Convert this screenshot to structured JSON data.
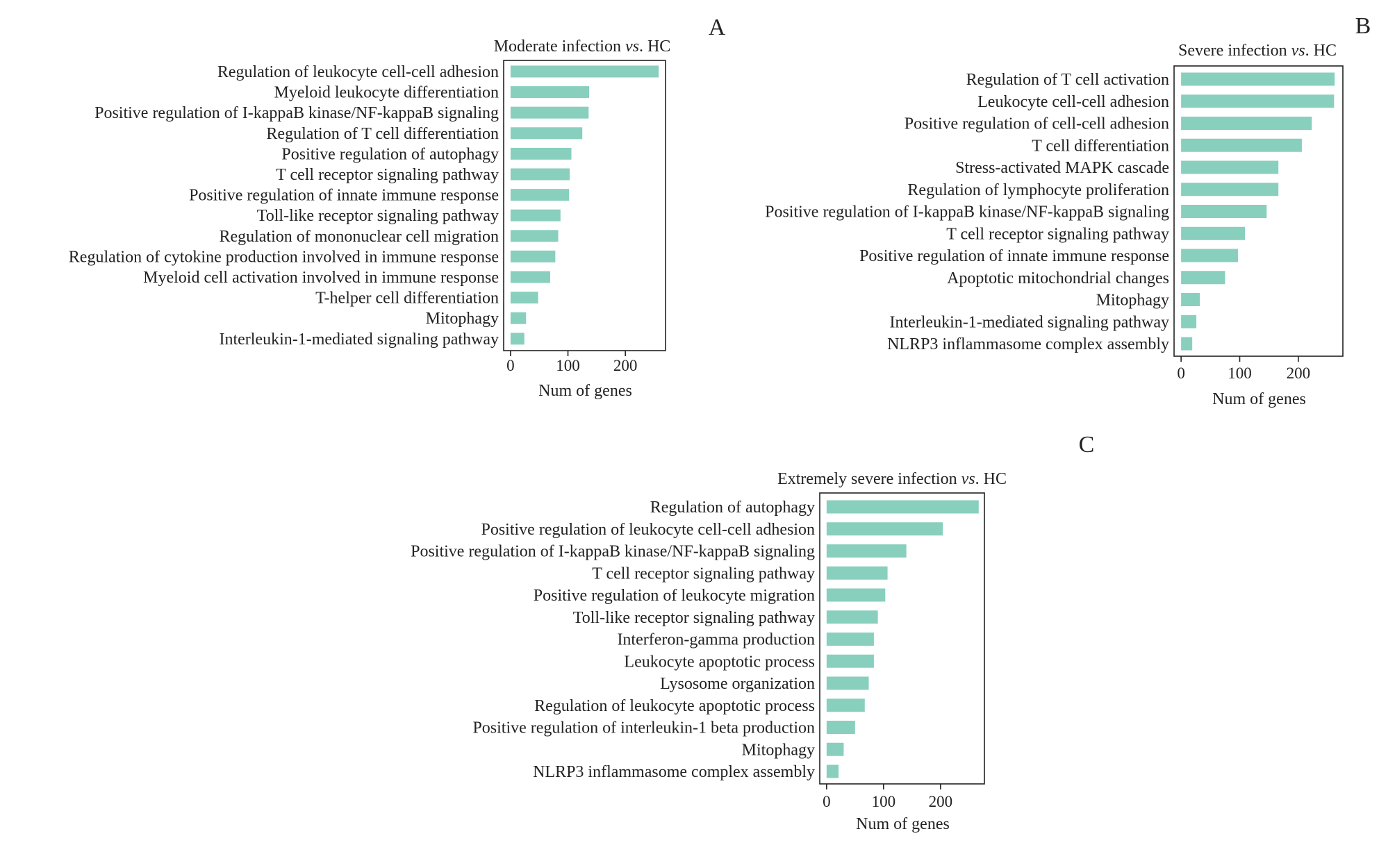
{
  "figure": {
    "xlabel": "Num of genes",
    "bar_color": "#88cfbe",
    "frame_color": "#222222",
    "text_color": "#222222",
    "background": "#ffffff"
  },
  "chart_data": [
    {
      "panel": "A",
      "type": "bar",
      "orientation": "horizontal",
      "title_parts": [
        "Moderate infection ",
        "vs",
        ". HC"
      ],
      "xlabel": "Num of genes",
      "xticks": [
        0,
        100,
        200
      ],
      "xlim": [
        -12,
        270
      ],
      "categories": [
        "Regulation of leukocyte cell-cell adhesion",
        "Myeloid leukocyte differentiation",
        "Positive regulation of I-kappaB kinase/NF-kappaB signaling",
        "Regulation of T cell differentiation",
        "Positive regulation of autophagy",
        "T cell receptor signaling pathway",
        "Positive regulation of innate immune response",
        "Toll-like receptor signaling pathway",
        "Regulation of mononuclear cell migration",
        "Regulation of cytokine production involved in immune response",
        "Myeloid cell activation involved in immune response",
        "T-helper cell differentiation",
        "Mitophagy",
        "Interleukin-1-mediated signaling pathway"
      ],
      "values": [
        258,
        137,
        136,
        125,
        106,
        103,
        102,
        87,
        83,
        78,
        69,
        48,
        27,
        24
      ]
    },
    {
      "panel": "B",
      "type": "bar",
      "orientation": "horizontal",
      "title_parts": [
        "Severe infection ",
        "vs",
        ". HC"
      ],
      "xlabel": "Num of genes",
      "xticks": [
        0,
        100,
        200
      ],
      "xlim": [
        -12,
        276
      ],
      "categories": [
        "Regulation of T cell activation",
        "Leukocyte cell-cell adhesion",
        "Positive regulation of cell-cell adhesion",
        "T cell differentiation",
        "Stress-activated MAPK cascade",
        "Regulation of lymphocyte proliferation",
        "Positive regulation of I-kappaB kinase/NF-kappaB signaling",
        "T cell receptor signaling pathway",
        "Positive regulation of innate immune response",
        "Apoptotic mitochondrial changes",
        "Mitophagy",
        "Interleukin-1-mediated signaling pathway",
        "NLRP3 inflammasome complex assembly"
      ],
      "values": [
        262,
        261,
        223,
        206,
        166,
        166,
        146,
        109,
        97,
        75,
        32,
        26,
        19
      ]
    },
    {
      "panel": "C",
      "type": "bar",
      "orientation": "horizontal",
      "title_parts": [
        "Extremely severe infection ",
        "vs",
        ". HC"
      ],
      "xlabel": "Num of genes",
      "xticks": [
        0,
        100,
        200
      ],
      "xlim": [
        -12,
        277
      ],
      "categories": [
        "Regulation of autophagy",
        "Positive regulation of leukocyte cell-cell adhesion",
        "Positive regulation of I-kappaB kinase/NF-kappaB signaling",
        "T cell receptor signaling pathway",
        "Positive regulation of leukocyte migration",
        "Toll-like receptor signaling pathway",
        "Interferon-gamma production",
        "Leukocyte apoptotic process",
        "Lysosome organization",
        "Regulation of leukocyte apoptotic process",
        "Positive regulation of interleukin-1 beta production",
        "Mitophagy",
        "NLRP3 inflammasome complex assembly"
      ],
      "values": [
        267,
        204,
        140,
        107,
        103,
        90,
        83,
        83,
        74,
        67,
        50,
        30,
        21
      ]
    }
  ]
}
